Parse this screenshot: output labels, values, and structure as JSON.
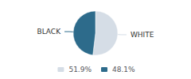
{
  "chart_data": {
    "type": "pie",
    "categories": [
      "WHITE",
      "BLACK"
    ],
    "values": [
      51.9,
      48.1
    ],
    "value_labels": [
      "51.9%",
      "48.1%"
    ],
    "colors": [
      "#d5dde6",
      "#2d6b8b"
    ],
    "legend": "bottom"
  }
}
